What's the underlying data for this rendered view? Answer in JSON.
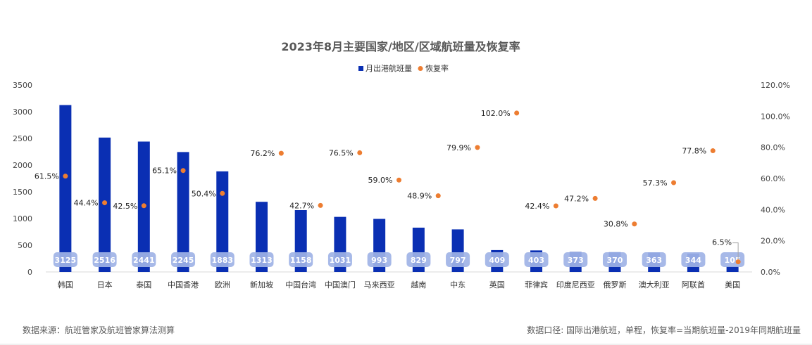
{
  "chart_data": {
    "type": "bar",
    "title": "2023年8月主要国家/地区/区域航班量及恢复率",
    "categories": [
      "韩国",
      "日本",
      "泰国",
      "中国香港",
      "欧洲",
      "新加坡",
      "中国台湾",
      "中国澳门",
      "马来西亚",
      "越南",
      "中东",
      "英国",
      "菲律宾",
      "印度尼西亚",
      "俄罗斯",
      "澳大利亚",
      "阿联酋",
      "美国"
    ],
    "series": [
      {
        "name": "月出港航班量",
        "axis": "left",
        "kind": "bar",
        "color": "#0a2fb3",
        "values": [
          3125,
          2516,
          2441,
          2245,
          1883,
          1313,
          1158,
          1031,
          993,
          829,
          797,
          409,
          403,
          373,
          370,
          363,
          344,
          105
        ]
      },
      {
        "name": "恢复率",
        "axis": "right",
        "kind": "scatter",
        "color": "#ed7d31",
        "values": [
          61.5,
          44.4,
          42.5,
          65.1,
          50.4,
          76.2,
          42.7,
          76.5,
          59.0,
          48.9,
          79.9,
          102.0,
          42.4,
          47.2,
          30.8,
          57.3,
          77.8,
          6.5
        ],
        "labels": [
          "61.5%",
          "44.4%",
          "42.5%",
          "65.1%",
          "50.4%",
          "76.2%",
          "42.7%",
          "76.5%",
          "59.0%",
          "48.9%",
          "79.9%",
          "102.0%",
          "42.4%",
          "47.2%",
          "30.8%",
          "57.3%",
          "77.8%",
          "6.5%"
        ]
      }
    ],
    "y_left": {
      "min": 0,
      "max": 3500,
      "ticks": [
        "0",
        "500",
        "1000",
        "1500",
        "2000",
        "2500",
        "3000",
        "3500"
      ]
    },
    "y_right": {
      "min": 0,
      "max": 120,
      "ticks": [
        "0.0%",
        "20.0%",
        "40.0%",
        "60.0%",
        "80.0%",
        "100.0%",
        "120.0%"
      ]
    },
    "legend_position": "top-center",
    "grid": false
  },
  "footer": {
    "source": "数据来源：航班管家及航班管家算法测算",
    "note": "数据口径: 国际出港航班，单程，恢复率=当期航班量-2019年同期航班量"
  }
}
